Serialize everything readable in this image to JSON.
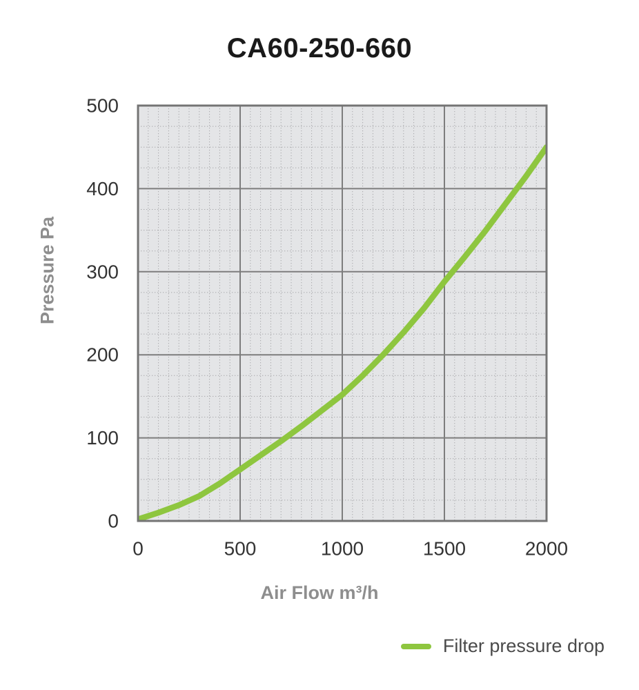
{
  "chart_data": {
    "type": "line",
    "title": "CA60-250-660",
    "xlabel": "Air Flow m³/h",
    "ylabel": "Pressure Pa",
    "xlim": [
      0,
      2000
    ],
    "ylim": [
      0,
      500
    ],
    "x_major_ticks": [
      0,
      500,
      1000,
      1500,
      2000
    ],
    "y_major_ticks": [
      0,
      100,
      200,
      300,
      400,
      500
    ],
    "x_minor_step": 50,
    "y_minor_step": 25,
    "grid": "major solid, minor dotted, gray plot background",
    "legend_position": "bottom-right",
    "legend": [
      "Filter pressure drop"
    ],
    "series": [
      {
        "name": "Filter pressure drop",
        "color": "#8ec63f",
        "x": [
          0,
          100,
          200,
          300,
          400,
          500,
          600,
          700,
          800,
          900,
          1000,
          1100,
          1200,
          1300,
          1400,
          1500,
          1600,
          1700,
          1800,
          1900,
          2000
        ],
        "y": [
          2,
          10,
          19,
          30,
          45,
          62,
          79,
          96,
          114,
          133,
          152,
          175,
          200,
          227,
          256,
          288,
          318,
          349,
          382,
          415,
          450
        ]
      }
    ],
    "colors": {
      "plot_bg": "#e4e5e7",
      "grid_major": "#7d7d7d",
      "grid_minor": "#a5a5a8",
      "border": "#747474",
      "tick_label": "#343434",
      "axis_title": "#8e8e8e",
      "title": "#1a1a1a",
      "legend_text": "#4a4a4a"
    }
  }
}
